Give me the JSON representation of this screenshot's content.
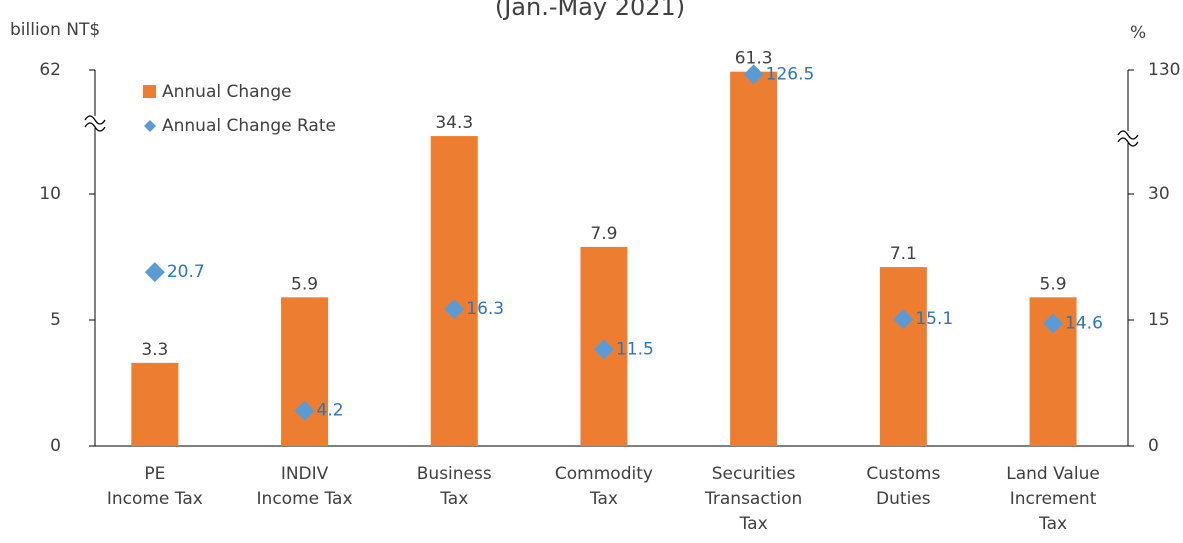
{
  "chart_data": {
    "type": "bar_line_broken",
    "subtitle": "(Jan.-May 2021)",
    "y_label": "billion NT$",
    "y2_label": "%",
    "categories": [
      "PE\nIncome Tax",
      "INDIV\nIncome Tax",
      "Business\nTax",
      "Commodity\nTax",
      "Securities\nTransaction\nTax",
      "Customs\nDuties",
      "Land Value\nIncrement\nTax"
    ],
    "series": [
      {
        "name": "Annual Change",
        "color": "#ed7d31",
        "values": [
          3.3,
          5.9,
          34.3,
          7.9,
          61.3,
          7.1,
          5.9
        ]
      },
      {
        "name": "Annual Change Rate",
        "color": "#5b9bd5",
        "label_color": "#2e75b6",
        "axis": "y2",
        "values": [
          20.7,
          4.2,
          16.3,
          11.5,
          126.5,
          15.1,
          14.6
        ]
      }
    ],
    "ylim": [
      0,
      62
    ],
    "yticks": [
      0,
      5,
      10,
      62
    ],
    "y2lim": [
      0,
      130
    ],
    "y2ticks": [
      0,
      15,
      30,
      130
    ],
    "axis_break": true,
    "legend": "top-left"
  }
}
